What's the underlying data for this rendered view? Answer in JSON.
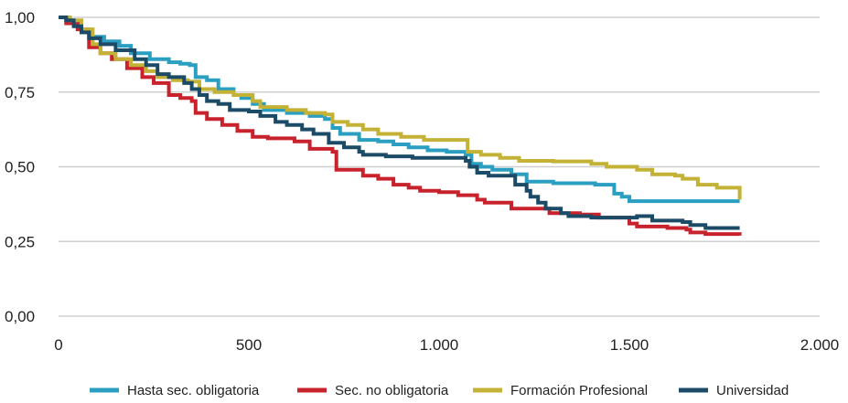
{
  "chart_data": {
    "type": "line",
    "title": "",
    "xlabel": "",
    "ylabel": "",
    "xlim": [
      0,
      2000
    ],
    "ylim": [
      0,
      1
    ],
    "x_ticks": [
      0,
      500,
      1000,
      1500,
      2000
    ],
    "x_tick_labels": [
      "0",
      "500",
      "1.000",
      "1.500",
      "2.000"
    ],
    "y_ticks": [
      0,
      0.25,
      0.5,
      0.75,
      1
    ],
    "y_tick_labels": [
      "0,00",
      "0,25",
      "0,50",
      "0,75",
      "1,00"
    ],
    "grid": "horizontal",
    "legend_position": "bottom",
    "step": true,
    "series": [
      {
        "name": "Hasta sec. obligatoria",
        "color": "#2a9fc1",
        "points": [
          [
            0,
            1
          ],
          [
            30,
            0.98
          ],
          [
            60,
            0.95
          ],
          [
            85,
            0.935
          ],
          [
            120,
            0.92
          ],
          [
            160,
            0.905
          ],
          [
            190,
            0.88
          ],
          [
            240,
            0.86
          ],
          [
            290,
            0.85
          ],
          [
            320,
            0.845
          ],
          [
            345,
            0.84
          ],
          [
            360,
            0.8
          ],
          [
            390,
            0.79
          ],
          [
            420,
            0.76
          ],
          [
            460,
            0.74
          ],
          [
            480,
            0.73
          ],
          [
            510,
            0.71
          ],
          [
            540,
            0.69
          ],
          [
            600,
            0.68
          ],
          [
            660,
            0.67
          ],
          [
            700,
            0.66
          ],
          [
            720,
            0.63
          ],
          [
            740,
            0.61
          ],
          [
            790,
            0.59
          ],
          [
            840,
            0.585
          ],
          [
            880,
            0.575
          ],
          [
            920,
            0.565
          ],
          [
            970,
            0.555
          ],
          [
            1020,
            0.55
          ],
          [
            1070,
            0.54
          ],
          [
            1085,
            0.51
          ],
          [
            1110,
            0.5
          ],
          [
            1140,
            0.49
          ],
          [
            1190,
            0.475
          ],
          [
            1230,
            0.45
          ],
          [
            1300,
            0.445
          ],
          [
            1410,
            0.44
          ],
          [
            1460,
            0.41
          ],
          [
            1480,
            0.4
          ],
          [
            1500,
            0.385
          ],
          [
            1600,
            0.385
          ],
          [
            1790,
            0.385
          ]
        ]
      },
      {
        "name": "Sec. no obligatoria",
        "color": "#c8232c",
        "points": [
          [
            0,
            1
          ],
          [
            20,
            0.98
          ],
          [
            50,
            0.96
          ],
          [
            80,
            0.9
          ],
          [
            110,
            0.88
          ],
          [
            140,
            0.86
          ],
          [
            180,
            0.83
          ],
          [
            220,
            0.8
          ],
          [
            250,
            0.78
          ],
          [
            290,
            0.74
          ],
          [
            320,
            0.73
          ],
          [
            350,
            0.72
          ],
          [
            360,
            0.68
          ],
          [
            390,
            0.66
          ],
          [
            430,
            0.64
          ],
          [
            470,
            0.62
          ],
          [
            510,
            0.6
          ],
          [
            550,
            0.595
          ],
          [
            620,
            0.585
          ],
          [
            660,
            0.56
          ],
          [
            720,
            0.55
          ],
          [
            730,
            0.49
          ],
          [
            800,
            0.47
          ],
          [
            840,
            0.46
          ],
          [
            880,
            0.44
          ],
          [
            920,
            0.43
          ],
          [
            950,
            0.42
          ],
          [
            1000,
            0.415
          ],
          [
            1050,
            0.405
          ],
          [
            1100,
            0.39
          ],
          [
            1120,
            0.38
          ],
          [
            1190,
            0.36
          ],
          [
            1290,
            0.345
          ],
          [
            1370,
            0.34
          ],
          [
            1420,
            0.33
          ],
          [
            1500,
            0.31
          ],
          [
            1520,
            0.3
          ],
          [
            1600,
            0.295
          ],
          [
            1650,
            0.29
          ],
          [
            1660,
            0.28
          ],
          [
            1700,
            0.275
          ],
          [
            1790,
            0.27
          ]
        ]
      },
      {
        "name": "Formación Profesional",
        "color": "#c3b236",
        "points": [
          [
            0,
            1
          ],
          [
            30,
            0.99
          ],
          [
            60,
            0.96
          ],
          [
            90,
            0.91
          ],
          [
            110,
            0.88
          ],
          [
            150,
            0.86
          ],
          [
            190,
            0.84
          ],
          [
            230,
            0.82
          ],
          [
            260,
            0.8
          ],
          [
            300,
            0.79
          ],
          [
            340,
            0.785
          ],
          [
            370,
            0.76
          ],
          [
            410,
            0.75
          ],
          [
            460,
            0.74
          ],
          [
            510,
            0.72
          ],
          [
            530,
            0.7
          ],
          [
            600,
            0.69
          ],
          [
            650,
            0.68
          ],
          [
            700,
            0.675
          ],
          [
            720,
            0.65
          ],
          [
            760,
            0.64
          ],
          [
            800,
            0.625
          ],
          [
            840,
            0.61
          ],
          [
            900,
            0.6
          ],
          [
            960,
            0.59
          ],
          [
            1070,
            0.59
          ],
          [
            1075,
            0.55
          ],
          [
            1110,
            0.54
          ],
          [
            1160,
            0.53
          ],
          [
            1210,
            0.52
          ],
          [
            1300,
            0.518
          ],
          [
            1400,
            0.51
          ],
          [
            1440,
            0.5
          ],
          [
            1500,
            0.5
          ],
          [
            1520,
            0.49
          ],
          [
            1560,
            0.475
          ],
          [
            1620,
            0.47
          ],
          [
            1640,
            0.46
          ],
          [
            1680,
            0.44
          ],
          [
            1730,
            0.43
          ],
          [
            1790,
            0.39
          ]
        ]
      },
      {
        "name": "Universidad",
        "color": "#1b4b66",
        "points": [
          [
            0,
            1
          ],
          [
            20,
            0.99
          ],
          [
            40,
            0.97
          ],
          [
            60,
            0.95
          ],
          [
            80,
            0.93
          ],
          [
            110,
            0.91
          ],
          [
            150,
            0.89
          ],
          [
            200,
            0.86
          ],
          [
            230,
            0.84
          ],
          [
            260,
            0.81
          ],
          [
            290,
            0.8
          ],
          [
            330,
            0.78
          ],
          [
            350,
            0.76
          ],
          [
            370,
            0.74
          ],
          [
            390,
            0.72
          ],
          [
            420,
            0.71
          ],
          [
            450,
            0.69
          ],
          [
            500,
            0.685
          ],
          [
            530,
            0.67
          ],
          [
            570,
            0.65
          ],
          [
            600,
            0.64
          ],
          [
            640,
            0.625
          ],
          [
            670,
            0.61
          ],
          [
            710,
            0.58
          ],
          [
            750,
            0.565
          ],
          [
            790,
            0.55
          ],
          [
            800,
            0.54
          ],
          [
            860,
            0.535
          ],
          [
            930,
            0.53
          ],
          [
            1000,
            0.53
          ],
          [
            1070,
            0.52
          ],
          [
            1080,
            0.5
          ],
          [
            1100,
            0.48
          ],
          [
            1130,
            0.47
          ],
          [
            1200,
            0.44
          ],
          [
            1230,
            0.42
          ],
          [
            1240,
            0.4
          ],
          [
            1260,
            0.38
          ],
          [
            1280,
            0.36
          ],
          [
            1320,
            0.345
          ],
          [
            1340,
            0.335
          ],
          [
            1400,
            0.33
          ],
          [
            1520,
            0.335
          ],
          [
            1560,
            0.32
          ],
          [
            1640,
            0.315
          ],
          [
            1660,
            0.305
          ],
          [
            1700,
            0.295
          ],
          [
            1790,
            0.295
          ]
        ]
      }
    ]
  }
}
